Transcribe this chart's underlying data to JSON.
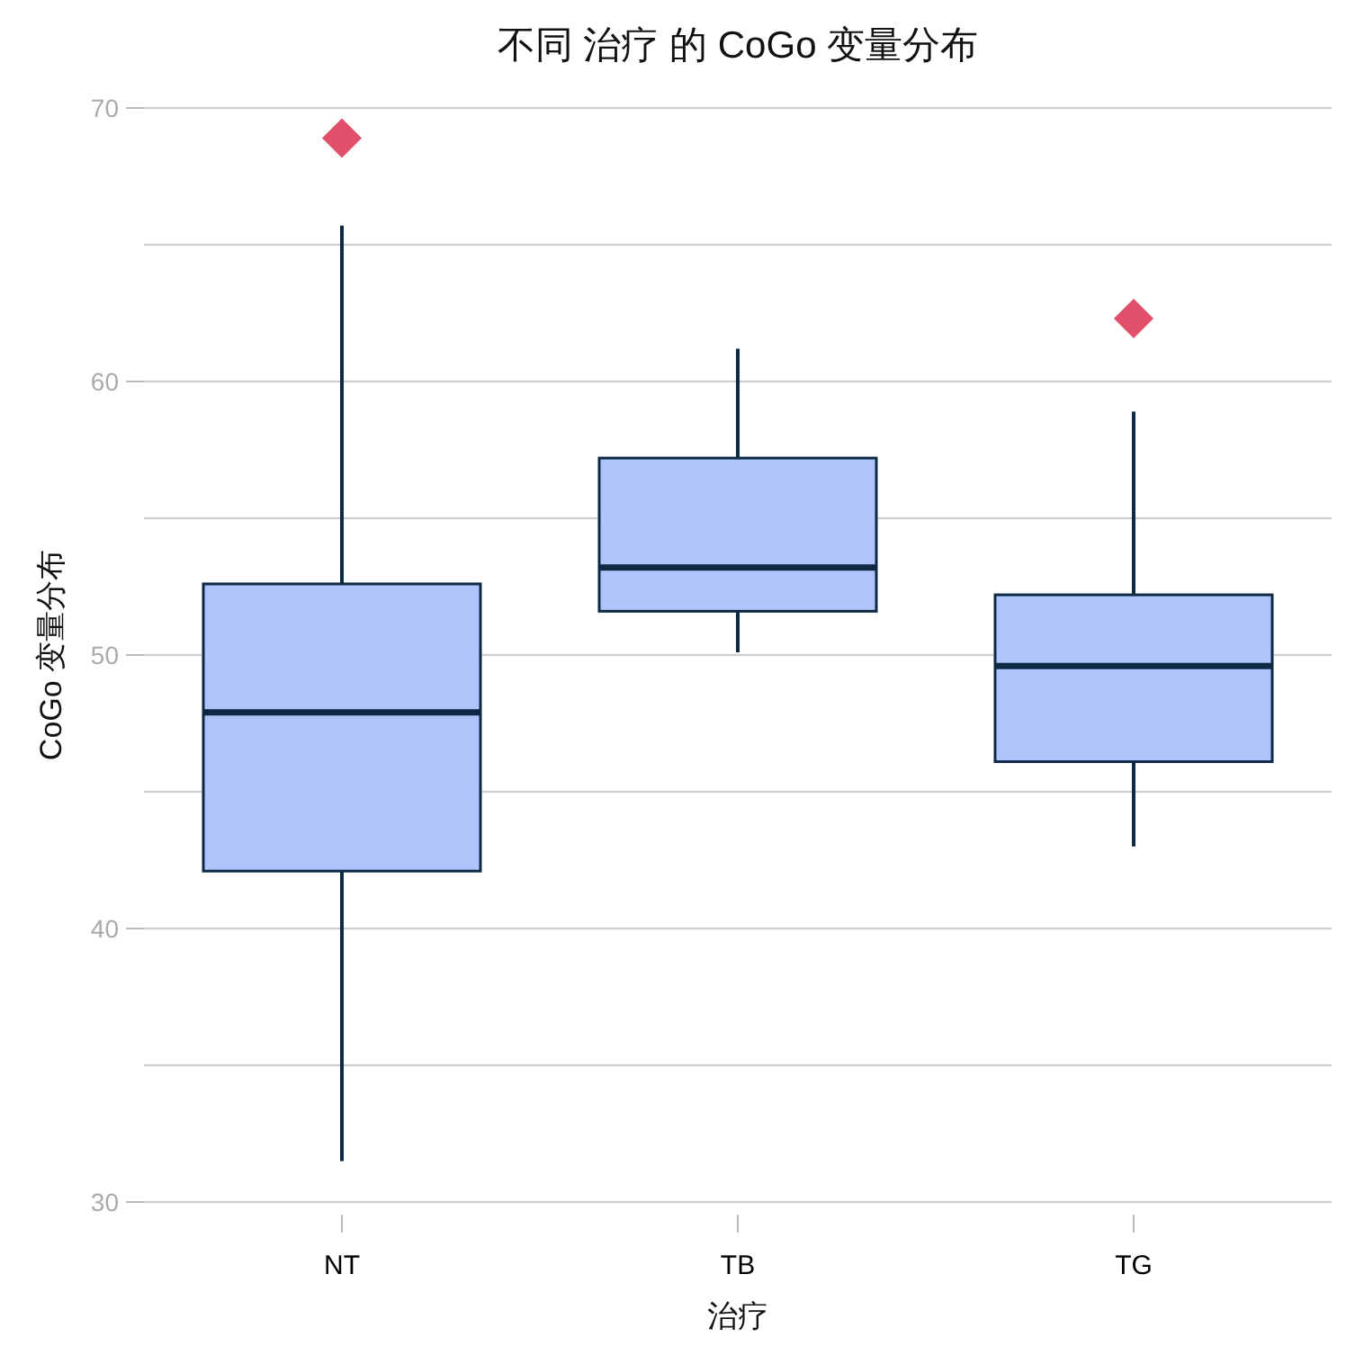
{
  "chart_data": {
    "type": "box",
    "title": "不同 治疗 的 CoGo 变量分布",
    "xlabel": "治疗",
    "ylabel": "CoGo 变量分布",
    "categories": [
      "NT",
      "TB",
      "TG"
    ],
    "boxes": [
      {
        "low": 31.5,
        "q1": 42.1,
        "median": 47.9,
        "q3": 52.6,
        "high": 65.7,
        "outliers": [
          68.9
        ]
      },
      {
        "low": 50.1,
        "q1": 51.6,
        "median": 53.2,
        "q3": 57.2,
        "high": 61.2
      },
      {
        "low": 43.0,
        "q1": 46.1,
        "median": 49.6,
        "q3": 52.2,
        "high": 58.9,
        "outliers": [
          62.3
        ]
      }
    ],
    "color": "#aec4fb",
    "ylim": [
      30,
      70
    ],
    "yticks": [
      30,
      {
        "value": 35,
        "label": null
      },
      40,
      {
        "value": 45,
        "label": null
      },
      50,
      {
        "value": 55,
        "label": null
      },
      60,
      {
        "value": 65,
        "label": null
      },
      70
    ],
    "grid": "y"
  }
}
